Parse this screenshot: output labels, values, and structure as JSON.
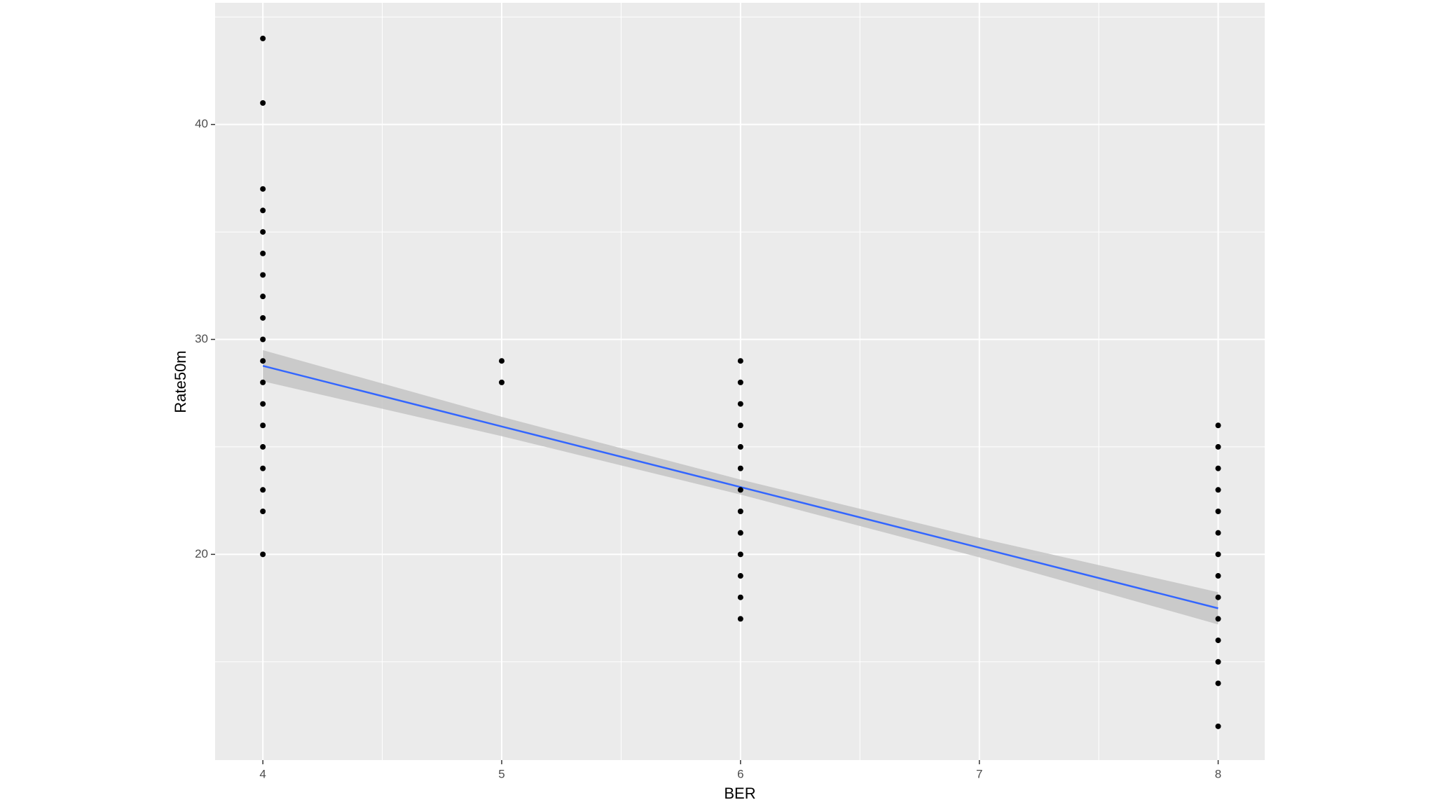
{
  "chart_data": {
    "type": "scatter",
    "xlabel": "BER",
    "ylabel": "Rate50m",
    "x": [
      4,
      4,
      4,
      4,
      4,
      4,
      4,
      4,
      4,
      4,
      4,
      4,
      4,
      4,
      4,
      4,
      4,
      4,
      4,
      5,
      5,
      6,
      6,
      6,
      6,
      6,
      6,
      6,
      6,
      6,
      6,
      6,
      6,
      6,
      8,
      8,
      8,
      8,
      8,
      8,
      8,
      8,
      8,
      8,
      8,
      8,
      8,
      8
    ],
    "values": [
      44,
      41,
      37,
      36,
      35,
      34,
      33,
      32,
      31,
      30,
      29,
      28,
      27,
      26,
      25,
      24,
      23,
      22,
      20,
      29,
      28,
      29,
      28,
      27,
      26,
      25,
      24,
      23,
      22,
      21,
      20,
      19,
      18,
      17,
      26,
      25,
      24,
      23,
      22,
      21,
      20,
      19,
      18,
      17,
      16,
      15,
      14,
      12
    ],
    "color": "#000000",
    "fit": {
      "x": [
        4,
        5,
        6,
        7,
        8
      ],
      "values": [
        28.77,
        25.95,
        23.13,
        20.31,
        17.49
      ],
      "lower": [
        28.05,
        25.5,
        22.78,
        19.86,
        16.74
      ],
      "upper": [
        29.5,
        26.4,
        23.48,
        20.76,
        18.24
      ],
      "color": "#3366ff",
      "band_color": "#c4c4c4"
    },
    "xlim": [
      3.8,
      8.195
    ],
    "ylim": [
      10.43,
      45.66
    ],
    "xticks": [
      4,
      5,
      6,
      7,
      8
    ],
    "yticks": [
      20,
      30,
      40
    ],
    "grid": true
  }
}
